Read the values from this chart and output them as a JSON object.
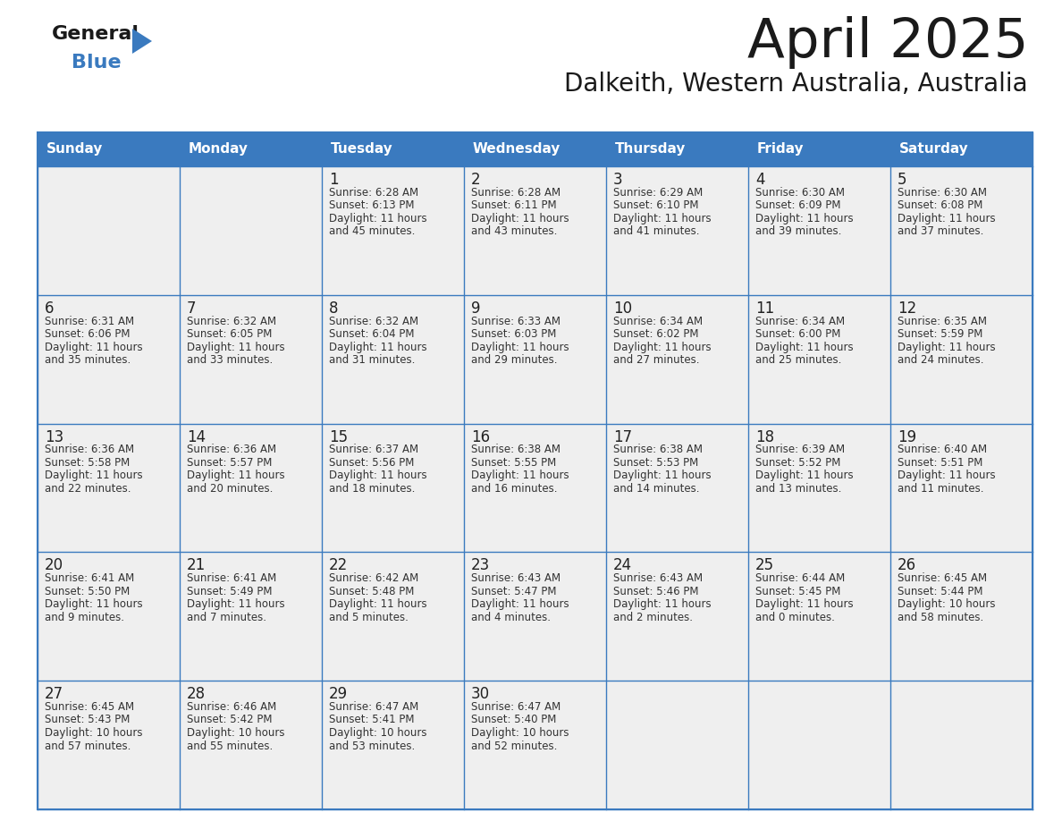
{
  "title": "April 2025",
  "subtitle": "Dalkeith, Western Australia, Australia",
  "header_color": "#3a7abf",
  "header_text_color": "#ffffff",
  "cell_bg_color": "#efefef",
  "border_color": "#3a7abf",
  "text_color": "#333333",
  "day_number_color": "#222222",
  "day_names": [
    "Sunday",
    "Monday",
    "Tuesday",
    "Wednesday",
    "Thursday",
    "Friday",
    "Saturday"
  ],
  "days_data": [
    {
      "day": 1,
      "col": 2,
      "row": 0,
      "sunrise": "6:28 AM",
      "sunset": "6:13 PM",
      "daylight": "11 hours and 45 minutes."
    },
    {
      "day": 2,
      "col": 3,
      "row": 0,
      "sunrise": "6:28 AM",
      "sunset": "6:11 PM",
      "daylight": "11 hours and 43 minutes."
    },
    {
      "day": 3,
      "col": 4,
      "row": 0,
      "sunrise": "6:29 AM",
      "sunset": "6:10 PM",
      "daylight": "11 hours and 41 minutes."
    },
    {
      "day": 4,
      "col": 5,
      "row": 0,
      "sunrise": "6:30 AM",
      "sunset": "6:09 PM",
      "daylight": "11 hours and 39 minutes."
    },
    {
      "day": 5,
      "col": 6,
      "row": 0,
      "sunrise": "6:30 AM",
      "sunset": "6:08 PM",
      "daylight": "11 hours and 37 minutes."
    },
    {
      "day": 6,
      "col": 0,
      "row": 1,
      "sunrise": "6:31 AM",
      "sunset": "6:06 PM",
      "daylight": "11 hours and 35 minutes."
    },
    {
      "day": 7,
      "col": 1,
      "row": 1,
      "sunrise": "6:32 AM",
      "sunset": "6:05 PM",
      "daylight": "11 hours and 33 minutes."
    },
    {
      "day": 8,
      "col": 2,
      "row": 1,
      "sunrise": "6:32 AM",
      "sunset": "6:04 PM",
      "daylight": "11 hours and 31 minutes."
    },
    {
      "day": 9,
      "col": 3,
      "row": 1,
      "sunrise": "6:33 AM",
      "sunset": "6:03 PM",
      "daylight": "11 hours and 29 minutes."
    },
    {
      "day": 10,
      "col": 4,
      "row": 1,
      "sunrise": "6:34 AM",
      "sunset": "6:02 PM",
      "daylight": "11 hours and 27 minutes."
    },
    {
      "day": 11,
      "col": 5,
      "row": 1,
      "sunrise": "6:34 AM",
      "sunset": "6:00 PM",
      "daylight": "11 hours and 25 minutes."
    },
    {
      "day": 12,
      "col": 6,
      "row": 1,
      "sunrise": "6:35 AM",
      "sunset": "5:59 PM",
      "daylight": "11 hours and 24 minutes."
    },
    {
      "day": 13,
      "col": 0,
      "row": 2,
      "sunrise": "6:36 AM",
      "sunset": "5:58 PM",
      "daylight": "11 hours and 22 minutes."
    },
    {
      "day": 14,
      "col": 1,
      "row": 2,
      "sunrise": "6:36 AM",
      "sunset": "5:57 PM",
      "daylight": "11 hours and 20 minutes."
    },
    {
      "day": 15,
      "col": 2,
      "row": 2,
      "sunrise": "6:37 AM",
      "sunset": "5:56 PM",
      "daylight": "11 hours and 18 minutes."
    },
    {
      "day": 16,
      "col": 3,
      "row": 2,
      "sunrise": "6:38 AM",
      "sunset": "5:55 PM",
      "daylight": "11 hours and 16 minutes."
    },
    {
      "day": 17,
      "col": 4,
      "row": 2,
      "sunrise": "6:38 AM",
      "sunset": "5:53 PM",
      "daylight": "11 hours and 14 minutes."
    },
    {
      "day": 18,
      "col": 5,
      "row": 2,
      "sunrise": "6:39 AM",
      "sunset": "5:52 PM",
      "daylight": "11 hours and 13 minutes."
    },
    {
      "day": 19,
      "col": 6,
      "row": 2,
      "sunrise": "6:40 AM",
      "sunset": "5:51 PM",
      "daylight": "11 hours and 11 minutes."
    },
    {
      "day": 20,
      "col": 0,
      "row": 3,
      "sunrise": "6:41 AM",
      "sunset": "5:50 PM",
      "daylight": "11 hours and 9 minutes."
    },
    {
      "day": 21,
      "col": 1,
      "row": 3,
      "sunrise": "6:41 AM",
      "sunset": "5:49 PM",
      "daylight": "11 hours and 7 minutes."
    },
    {
      "day": 22,
      "col": 2,
      "row": 3,
      "sunrise": "6:42 AM",
      "sunset": "5:48 PM",
      "daylight": "11 hours and 5 minutes."
    },
    {
      "day": 23,
      "col": 3,
      "row": 3,
      "sunrise": "6:43 AM",
      "sunset": "5:47 PM",
      "daylight": "11 hours and 4 minutes."
    },
    {
      "day": 24,
      "col": 4,
      "row": 3,
      "sunrise": "6:43 AM",
      "sunset": "5:46 PM",
      "daylight": "11 hours and 2 minutes."
    },
    {
      "day": 25,
      "col": 5,
      "row": 3,
      "sunrise": "6:44 AM",
      "sunset": "5:45 PM",
      "daylight": "11 hours and 0 minutes."
    },
    {
      "day": 26,
      "col": 6,
      "row": 3,
      "sunrise": "6:45 AM",
      "sunset": "5:44 PM",
      "daylight": "10 hours and 58 minutes."
    },
    {
      "day": 27,
      "col": 0,
      "row": 4,
      "sunrise": "6:45 AM",
      "sunset": "5:43 PM",
      "daylight": "10 hours and 57 minutes."
    },
    {
      "day": 28,
      "col": 1,
      "row": 4,
      "sunrise": "6:46 AM",
      "sunset": "5:42 PM",
      "daylight": "10 hours and 55 minutes."
    },
    {
      "day": 29,
      "col": 2,
      "row": 4,
      "sunrise": "6:47 AM",
      "sunset": "5:41 PM",
      "daylight": "10 hours and 53 minutes."
    },
    {
      "day": 30,
      "col": 3,
      "row": 4,
      "sunrise": "6:47 AM",
      "sunset": "5:40 PM",
      "daylight": "10 hours and 52 minutes."
    }
  ]
}
